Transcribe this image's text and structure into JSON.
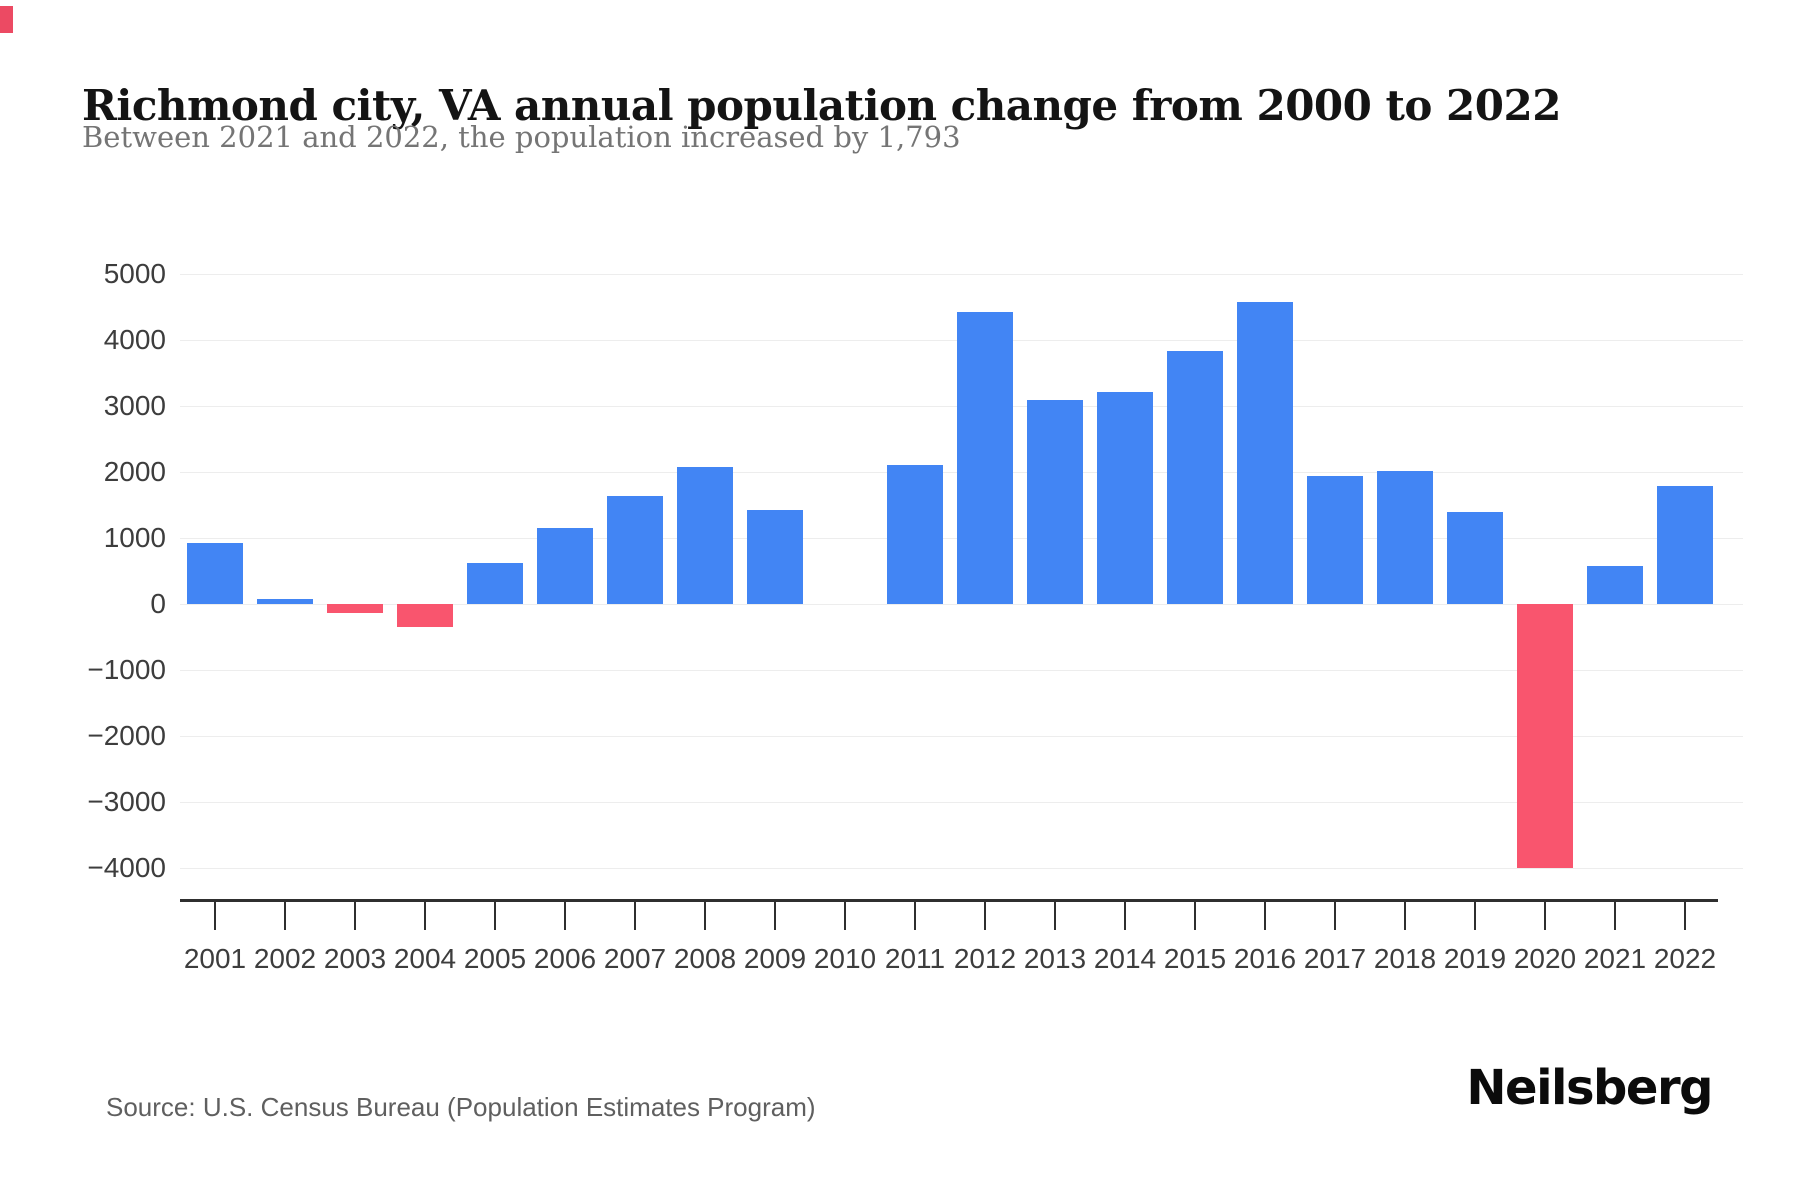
{
  "header": {
    "title": "Richmond city, VA annual population change from 2000 to 2022",
    "subtitle": "Between 2021 and 2022, the population increased by 1,793"
  },
  "footer": {
    "source": "Source: U.S. Census Bureau (Population Estimates Program)",
    "brand": "Neilsberg"
  },
  "chart_data": {
    "type": "bar",
    "title": "Richmond city, VA annual population change from 2000 to 2022",
    "subtitle": "Between 2021 and 2022, the population increased by 1,793",
    "xlabel": "",
    "ylabel": "",
    "categories": [
      "2001",
      "2002",
      "2003",
      "2004",
      "2005",
      "2006",
      "2007",
      "2008",
      "2009",
      "2010",
      "2011",
      "2012",
      "2013",
      "2014",
      "2015",
      "2016",
      "2017",
      "2018",
      "2019",
      "2020",
      "2021",
      "2022"
    ],
    "values": [
      930,
      70,
      -140,
      -350,
      620,
      1150,
      1630,
      2080,
      1430,
      0,
      2100,
      4425,
      3090,
      3210,
      3835,
      4580,
      1940,
      2010,
      1395,
      -4000,
      570,
      1793
    ],
    "ylim": [
      -4000,
      5000
    ],
    "ytick_values": [
      5000,
      4000,
      3000,
      2000,
      1000,
      0,
      -1000,
      -2000,
      -3000,
      -4000
    ],
    "ytick_labels": [
      "5000",
      "4000",
      "3000",
      "2000",
      "1000",
      "0",
      "−1000",
      "−2000",
      "−3000",
      "−4000"
    ],
    "grid": true,
    "legend": "none",
    "colors": {
      "positive_bar": "#4285F4",
      "negative_bar": "#F9556E",
      "gridline": "#ededed",
      "axis": "#2f2f2f",
      "tick_label": "#3d3d3d"
    }
  }
}
